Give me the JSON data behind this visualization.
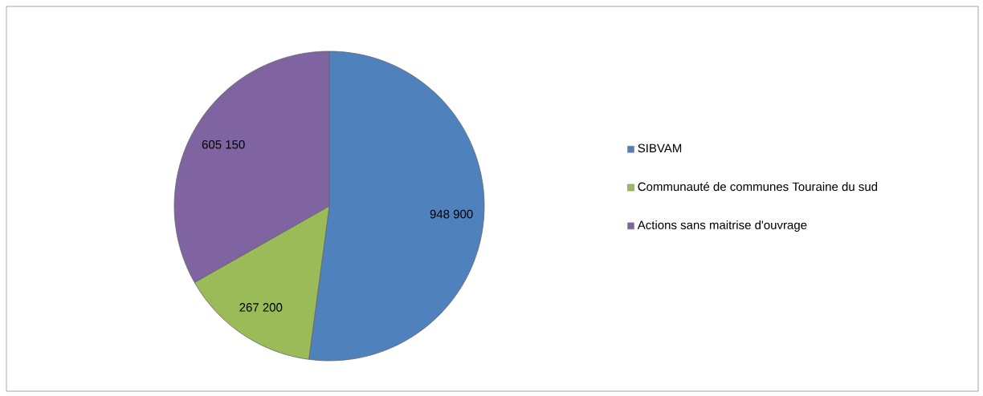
{
  "chart_data": {
    "type": "pie",
    "categories": [
      "SIBVAM",
      "Communauté de communes Touraine du sud",
      "Actions sans maitrise d'ouvrage"
    ],
    "values": [
      948900,
      267200,
      605150
    ],
    "value_labels": [
      "948 900",
      "267 200",
      "605 150"
    ],
    "colors": [
      "#4f81bd",
      "#9bbb59",
      "#8064a2"
    ],
    "legend": "right"
  }
}
